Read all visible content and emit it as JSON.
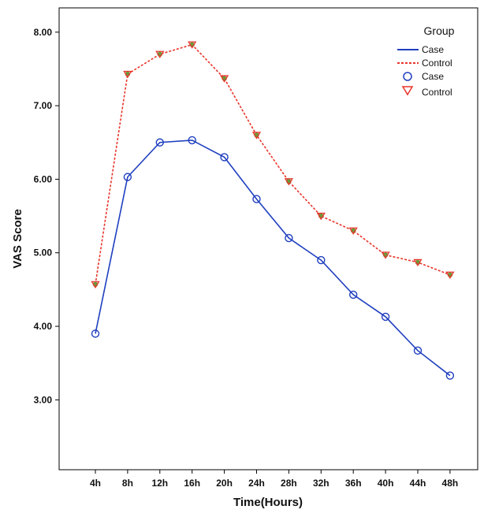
{
  "chart_data": {
    "type": "line",
    "title": "",
    "xlabel": "Time(Hours)",
    "ylabel": "VAS Score",
    "categories": [
      "4h",
      "8h",
      "12h",
      "16h",
      "20h",
      "24h",
      "28h",
      "32h",
      "36h",
      "40h",
      "44h",
      "48h"
    ],
    "yticks": [
      "3.00",
      "4.00",
      "5.00",
      "6.00",
      "7.00",
      "8.00"
    ],
    "ylim": [
      2.05,
      8.33
    ],
    "grid": false,
    "legend_position": "top-right",
    "legend_title": "Group",
    "legend_line_labels": [
      "Case",
      "Control"
    ],
    "legend_marker_labels": [
      "Case",
      "Control"
    ],
    "series": [
      {
        "name": "Case",
        "color": "#1f3fbf",
        "line_style": "solid",
        "marker": "circle",
        "values": [
          3.9,
          6.03,
          6.5,
          6.53,
          6.3,
          5.73,
          5.2,
          4.9,
          4.43,
          4.13,
          3.67,
          3.33
        ]
      },
      {
        "name": "Control",
        "color": "#e8352b",
        "line_style": "dashed",
        "marker": "triangle-down",
        "marker_fill": "#6b9a3a",
        "values": [
          4.57,
          7.43,
          7.7,
          7.83,
          7.37,
          6.6,
          5.97,
          5.5,
          5.3,
          4.97,
          4.87,
          4.7
        ]
      }
    ]
  }
}
